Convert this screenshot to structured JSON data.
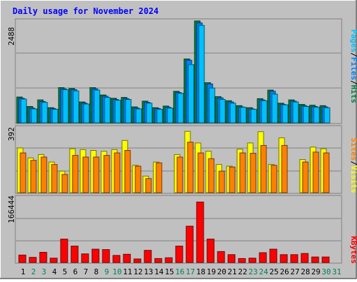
{
  "title": "Daily usage for November 2024",
  "days": [
    "1",
    "2",
    "3",
    "4",
    "5",
    "6",
    "7",
    "8",
    "9",
    "10",
    "11",
    "12",
    "13",
    "14",
    "15",
    "16",
    "17",
    "18",
    "19",
    "20",
    "21",
    "22",
    "23",
    "24",
    "25",
    "26",
    "27",
    "28",
    "29",
    "30",
    "31"
  ],
  "weekend_days": [
    2,
    3,
    9,
    10,
    16,
    17,
    23,
    24,
    30,
    31
  ],
  "colors": {
    "background": "#c0c0c0",
    "title": "#0000ff",
    "hits": "#008040",
    "files": "#0080ff",
    "pages": "#00c0ff",
    "visits": "#ffff00",
    "sites": "#ff8000",
    "kbytes": "#ff0000",
    "weekday_label": "#000000",
    "weekend_label": "#00805c"
  },
  "chart_data": [
    {
      "type": "bar",
      "panel": "top",
      "ymax_label": "2488",
      "ylim": [
        0,
        2488
      ],
      "legend": [
        "Pages",
        "Files",
        "Hits"
      ],
      "series": [
        {
          "name": "Hits",
          "values": [
            630,
            400,
            560,
            370,
            860,
            840,
            510,
            860,
            680,
            600,
            620,
            390,
            530,
            370,
            410,
            770,
            1560,
            2488,
            980,
            640,
            540,
            420,
            370,
            590,
            800,
            480,
            560,
            450,
            430,
            420,
            0
          ]
        },
        {
          "name": "Files",
          "values": [
            600,
            360,
            520,
            350,
            830,
            810,
            480,
            830,
            650,
            570,
            590,
            360,
            500,
            350,
            380,
            740,
            1530,
            2440,
            950,
            610,
            510,
            390,
            340,
            560,
            770,
            450,
            530,
            420,
            400,
            390,
            0
          ]
        },
        {
          "name": "Pages",
          "values": [
            580,
            340,
            500,
            330,
            810,
            780,
            460,
            800,
            620,
            550,
            570,
            340,
            480,
            330,
            360,
            720,
            1420,
            2380,
            850,
            570,
            480,
            380,
            330,
            540,
            700,
            440,
            510,
            400,
            380,
            370,
            0
          ]
        }
      ]
    },
    {
      "type": "bar",
      "panel": "middle",
      "ymax_label": "392",
      "ylim": [
        0,
        392
      ],
      "legend": [
        "Sites",
        "Visits"
      ],
      "series": [
        {
          "name": "Visits",
          "values": [
            270,
            210,
            230,
            185,
            130,
            265,
            260,
            255,
            250,
            260,
            315,
            165,
            100,
            185,
            0,
            230,
            370,
            300,
            250,
            170,
            160,
            263,
            300,
            368,
            170,
            331,
            0,
            200,
            275,
            265,
            0
          ]
        },
        {
          "name": "Sites",
          "values": [
            240,
            195,
            215,
            170,
            110,
            225,
            215,
            215,
            225,
            240,
            255,
            160,
            85,
            180,
            0,
            215,
            305,
            240,
            205,
            130,
            155,
            240,
            238,
            285,
            165,
            285,
            0,
            185,
            245,
            240,
            0
          ]
        }
      ]
    },
    {
      "type": "bar",
      "panel": "bottom",
      "ymax_label": "166444",
      "ylim": [
        0,
        166444
      ],
      "legend": [
        "KBytes"
      ],
      "series": [
        {
          "name": "KBytes",
          "values": [
            19000,
            13000,
            26000,
            11000,
            60000,
            42000,
            22000,
            34000,
            33000,
            18000,
            21000,
            9000,
            31000,
            10000,
            12000,
            42000,
            93000,
            155000,
            60000,
            28000,
            20000,
            10000,
            11000,
            25000,
            34000,
            20000,
            20000,
            23000,
            14000,
            14000,
            0
          ]
        }
      ]
    }
  ]
}
